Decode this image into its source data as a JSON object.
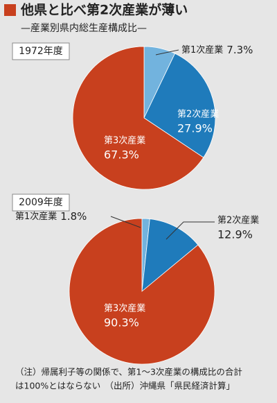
{
  "title": "他県と比べ第2次産業が薄い",
  "subtitle": "—産業別県内総生産構成比—",
  "chart_data": [
    {
      "type": "pie",
      "title": "1972年度",
      "categories": [
        "第1次産業",
        "第2次産業",
        "第3次産業"
      ],
      "values": [
        7.3,
        27.9,
        67.3
      ],
      "value_labels": [
        "7.3%",
        "27.9%",
        "67.3%"
      ],
      "colors": [
        "#72b3de",
        "#1f7bbb",
        "#c8401e"
      ]
    },
    {
      "type": "pie",
      "title": "2009年度",
      "categories": [
        "第1次産業",
        "第2次産業",
        "第3次産業"
      ],
      "values": [
        1.8,
        12.9,
        90.3
      ],
      "value_labels": [
        "1.8%",
        "12.9%",
        "90.3%"
      ],
      "colors": [
        "#72b3de",
        "#1f7bbb",
        "#c8401e"
      ]
    }
  ],
  "notes": [
    "（注）帰属利子等の関係で、第1～3次産業の構成比の合計",
    "は100%とはならない　（出所）沖縄県「県民経済計算」"
  ]
}
